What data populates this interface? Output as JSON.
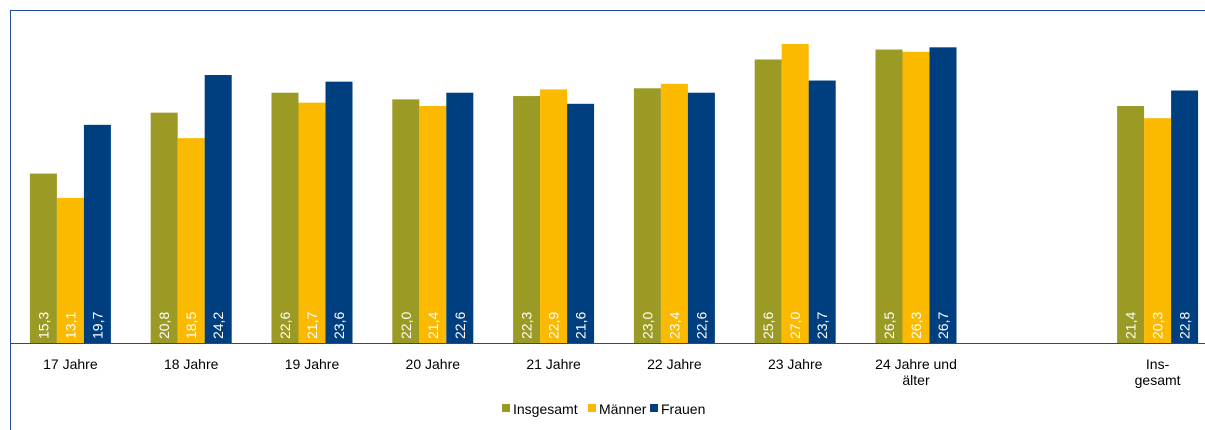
{
  "chart_data": {
    "type": "bar",
    "categories": [
      "17 Jahre",
      "18 Jahre",
      "19 Jahre",
      "20 Jahre",
      "21 Jahre",
      "22 Jahre",
      "23 Jahre",
      "24 Jahre und\nälter",
      null,
      "Ins-\ngesamt"
    ],
    "series": [
      {
        "name": "Insgesamt",
        "color": "#9a9a24",
        "values": [
          15.3,
          20.8,
          22.6,
          22.0,
          22.3,
          23.0,
          25.6,
          26.5,
          null,
          21.4
        ],
        "value_labels": [
          "15,3",
          "20,8",
          "22,6",
          "22,0",
          "22,3",
          "23,0",
          "25,6",
          "26,5",
          null,
          "21,4"
        ]
      },
      {
        "name": "Männer",
        "color": "#fbb900",
        "values": [
          13.1,
          18.5,
          21.7,
          21.4,
          22.9,
          23.4,
          27.0,
          26.3,
          null,
          20.3
        ],
        "value_labels": [
          "13,1",
          "18,5",
          "21,7",
          "21,4",
          "22,9",
          "23,4",
          "27,0",
          "26,3",
          null,
          "20,3"
        ]
      },
      {
        "name": "Frauen",
        "color": "#003f7f",
        "values": [
          19.7,
          24.2,
          23.6,
          22.6,
          21.6,
          22.6,
          23.7,
          26.7,
          null,
          22.8
        ],
        "value_labels": [
          "19,7",
          "24,2",
          "23,6",
          "22,6",
          "21,6",
          "22,6",
          "23,7",
          "26,7",
          null,
          "22,8"
        ]
      }
    ],
    "ylim": [
      0,
      27
    ],
    "legend": "bottom"
  }
}
